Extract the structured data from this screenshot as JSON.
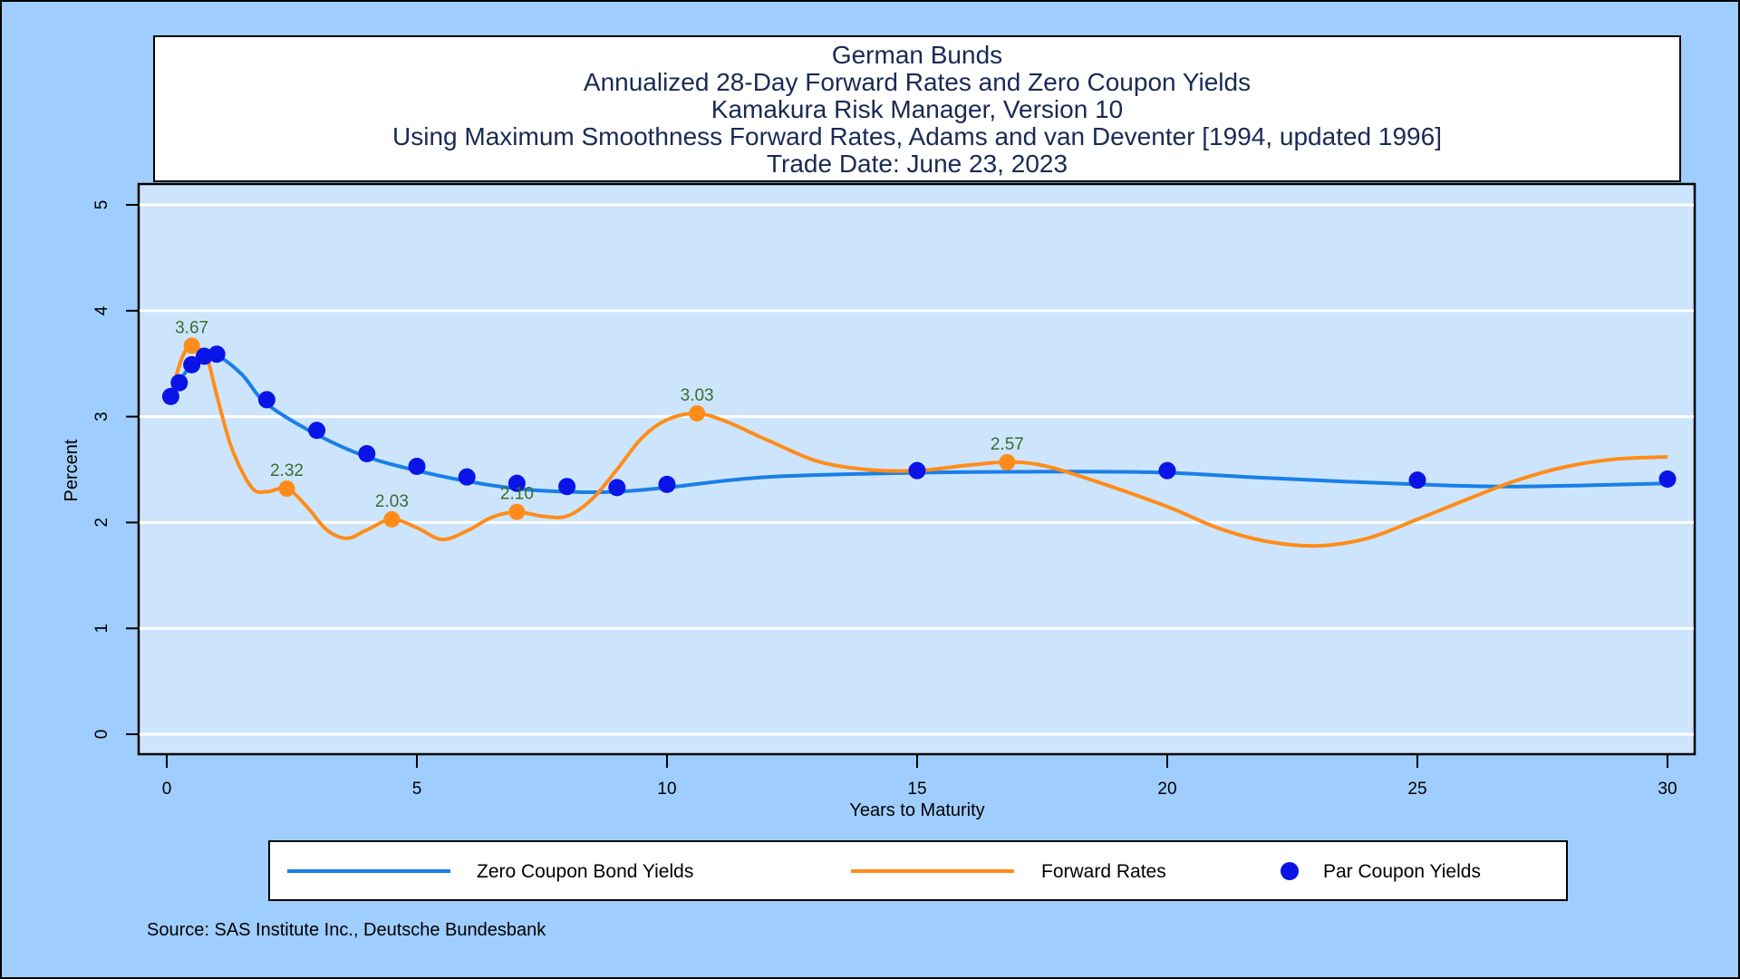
{
  "chart_data": {
    "type": "line",
    "title_lines": [
      "German Bunds",
      "Annualized 28-Day Forward Rates and Zero Coupon Yields",
      "Kamakura Risk Manager, Version 10",
      "Using Maximum Smoothness Forward Rates, Adams and van Deventer [1994, updated 1996]",
      "Trade Date: June 23, 2023"
    ],
    "xlabel": "Years to Maturity",
    "ylabel": "Percent",
    "xlim": [
      0,
      30
    ],
    "ylim": [
      0,
      5
    ],
    "x_ticks": [
      0,
      5,
      10,
      15,
      20,
      25,
      30
    ],
    "y_ticks": [
      0,
      1,
      2,
      3,
      4,
      5
    ],
    "grid": true,
    "legend_position": "bottom",
    "source": "Source: SAS Institute Inc., Deutsche Bundesbank",
    "series": [
      {
        "name": "Zero Coupon Bond Yields",
        "kind": "line",
        "color": "#1a7fe8",
        "x": [
          0.08,
          0.25,
          0.5,
          0.75,
          1,
          1.5,
          2,
          3,
          4,
          5,
          6,
          7,
          8,
          9,
          10,
          12,
          15,
          18,
          20,
          22,
          25,
          27,
          30
        ],
        "y": [
          3.2,
          3.34,
          3.48,
          3.56,
          3.58,
          3.4,
          3.12,
          2.83,
          2.62,
          2.49,
          2.39,
          2.32,
          2.29,
          2.29,
          2.33,
          2.43,
          2.47,
          2.48,
          2.47,
          2.42,
          2.36,
          2.34,
          2.37
        ]
      },
      {
        "name": "Forward Rates",
        "kind": "line",
        "color": "#ff8c1a",
        "x": [
          0.08,
          0.3,
          0.5,
          0.8,
          1.0,
          1.3,
          1.7,
          2.0,
          2.4,
          2.8,
          3.2,
          3.6,
          4.0,
          4.5,
          5.0,
          5.5,
          6.0,
          6.5,
          7.0,
          7.5,
          8.0,
          8.5,
          9.0,
          9.5,
          10.0,
          10.6,
          11.2,
          12.0,
          13.0,
          14.0,
          15.0,
          16.0,
          16.8,
          17.5,
          18.5,
          20.0,
          21.0,
          22.0,
          23.0,
          24.0,
          25.0,
          26.0,
          27.0,
          28.0,
          29.0,
          30.0
        ],
        "y": [
          3.2,
          3.55,
          3.67,
          3.55,
          3.2,
          2.7,
          2.33,
          2.29,
          2.32,
          2.15,
          1.93,
          1.85,
          1.93,
          2.03,
          1.95,
          1.84,
          1.92,
          2.05,
          2.1,
          2.06,
          2.06,
          2.22,
          2.5,
          2.8,
          2.97,
          3.03,
          2.95,
          2.78,
          2.58,
          2.5,
          2.49,
          2.54,
          2.57,
          2.54,
          2.4,
          2.15,
          1.95,
          1.82,
          1.78,
          1.85,
          2.03,
          2.22,
          2.4,
          2.53,
          2.6,
          2.62
        ]
      },
      {
        "name": "Par Coupon Yields",
        "kind": "scatter",
        "color": "#0a14e6",
        "x": [
          0.08,
          0.25,
          0.5,
          0.75,
          1,
          2,
          3,
          4,
          5,
          6,
          7,
          8,
          9,
          10,
          15,
          20,
          25,
          30
        ],
        "y": [
          3.19,
          3.32,
          3.49,
          3.57,
          3.59,
          3.16,
          2.87,
          2.65,
          2.53,
          2.43,
          2.37,
          2.34,
          2.33,
          2.36,
          2.49,
          2.49,
          2.4,
          2.41
        ]
      }
    ],
    "annotations": [
      {
        "label": "3.67",
        "x": 0.5,
        "y": 3.67
      },
      {
        "label": "2.32",
        "x": 2.4,
        "y": 2.32
      },
      {
        "label": "2.03",
        "x": 4.5,
        "y": 2.03
      },
      {
        "label": "2.10",
        "x": 7.0,
        "y": 2.1
      },
      {
        "label": "3.03",
        "x": 10.6,
        "y": 3.03
      },
      {
        "label": "2.57",
        "x": 16.8,
        "y": 2.57
      }
    ]
  }
}
